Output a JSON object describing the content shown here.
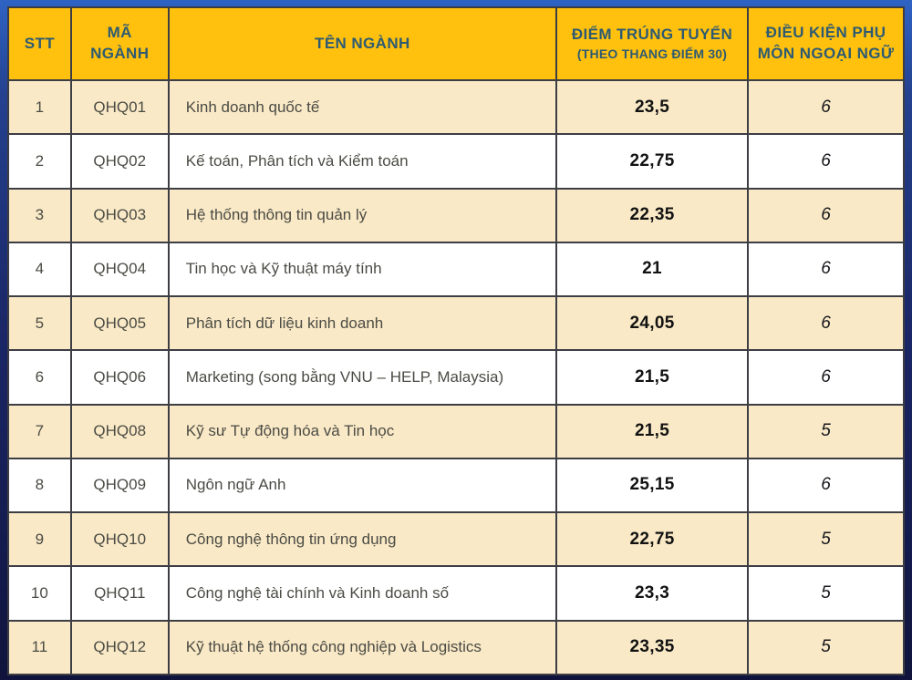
{
  "colors": {
    "header_bg": "#FFC10E",
    "header_text": "#2E5B72",
    "row_cream": "#F9E9C6",
    "row_white": "#FFFFFF",
    "grid_line": "#3D3D44",
    "frame_top_blue": "#2F63C4",
    "frame_bottom_navy": "#10143C",
    "body_text": "#4B4B45",
    "score_text": "#121212"
  },
  "table": {
    "columns": {
      "stt": "STT",
      "code_line1": "MÃ",
      "code_line2": "NGÀNH",
      "name": "TÊN NGÀNH",
      "score_line1": "ĐIỂM TRÚNG TUYỂN",
      "score_line2": "(THEO THANG ĐIỂM 30)",
      "cond_line1": "ĐIỀU KIỆN PHỤ",
      "cond_line2": "MÔN NGOẠI NGỮ"
    },
    "rows": [
      {
        "stt": "1",
        "code": "QHQ01",
        "name": "Kinh doanh quốc tế",
        "score": "23,5",
        "condition": "6"
      },
      {
        "stt": "2",
        "code": "QHQ02",
        "name": "Kế toán, Phân tích và Kiểm toán",
        "score": "22,75",
        "condition": "6"
      },
      {
        "stt": "3",
        "code": "QHQ03",
        "name": "Hệ thống thông tin quản lý",
        "score": "22,35",
        "condition": "6"
      },
      {
        "stt": "4",
        "code": "QHQ04",
        "name": "Tin học và Kỹ thuật máy tính",
        "score": "21",
        "condition": "6"
      },
      {
        "stt": "5",
        "code": "QHQ05",
        "name": "Phân tích dữ liệu kinh doanh",
        "score": "24,05",
        "condition": "6"
      },
      {
        "stt": "6",
        "code": "QHQ06",
        "name": "Marketing (song bằng VNU – HELP, Malaysia)",
        "score": "21,5",
        "condition": "6"
      },
      {
        "stt": "7",
        "code": "QHQ08",
        "name": "Kỹ sư Tự động hóa và Tin học",
        "score": "21,5",
        "condition": "5"
      },
      {
        "stt": "8",
        "code": "QHQ09",
        "name": "Ngôn ngữ Anh",
        "score": "25,15",
        "condition": "6"
      },
      {
        "stt": "9",
        "code": "QHQ10",
        "name": "Công nghệ thông tin ứng dụng",
        "score": "22,75",
        "condition": "5"
      },
      {
        "stt": "10",
        "code": "QHQ11",
        "name": "Công nghệ tài chính và Kinh doanh số",
        "score": "23,3",
        "condition": "5"
      },
      {
        "stt": "11",
        "code": "QHQ12",
        "name": "Kỹ thuật hệ thống công nghiệp và Logistics",
        "score": "23,35",
        "condition": "5"
      }
    ]
  },
  "chart_data": {
    "type": "table",
    "title": "",
    "columns": [
      "STT",
      "MÃ NGÀNH",
      "TÊN NGÀNH",
      "ĐIỂM TRÚNG TUYỂN (THEO THANG ĐIỂM 30)",
      "ĐIỀU KIỆN PHỤ MÔN NGOẠI NGỮ"
    ],
    "rows": [
      [
        "1",
        "QHQ01",
        "Kinh doanh quốc tế",
        23.5,
        6
      ],
      [
        "2",
        "QHQ02",
        "Kế toán, Phân tích và Kiểm toán",
        22.75,
        6
      ],
      [
        "3",
        "QHQ03",
        "Hệ thống thông tin quản lý",
        22.35,
        6
      ],
      [
        "4",
        "QHQ04",
        "Tin học và Kỹ thuật máy tính",
        21,
        6
      ],
      [
        "5",
        "QHQ05",
        "Phân tích dữ liệu kinh doanh",
        24.05,
        6
      ],
      [
        "6",
        "QHQ06",
        "Marketing (song bằng VNU – HELP, Malaysia)",
        21.5,
        6
      ],
      [
        "7",
        "QHQ08",
        "Kỹ sư Tự động hóa và Tin học",
        21.5,
        5
      ],
      [
        "8",
        "QHQ09",
        "Ngôn ngữ Anh",
        25.15,
        6
      ],
      [
        "9",
        "QHQ10",
        "Công nghệ thông tin ứng dụng",
        22.75,
        5
      ],
      [
        "10",
        "QHQ11",
        "Công nghệ tài chính và Kinh doanh số",
        23.3,
        5
      ],
      [
        "11",
        "QHQ12",
        "Kỹ thuật hệ thống công nghiệp và Logistics",
        23.35,
        5
      ]
    ]
  }
}
